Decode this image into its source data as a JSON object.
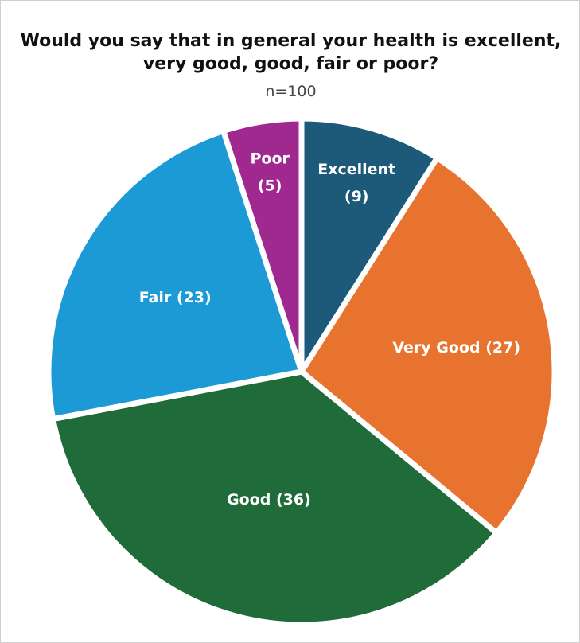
{
  "chart_data": {
    "type": "pie",
    "title": "Would you say that in general your health is excellent, very good, good, fair or poor?",
    "subtitle": "n=100",
    "slices": [
      {
        "key": "excellent",
        "label_lines": [
          "Excellent",
          "(9)"
        ],
        "value": 9,
        "color": "#1d5a7a"
      },
      {
        "key": "very-good",
        "label_lines": [
          "Very Good (27)"
        ],
        "value": 27,
        "color": "#e8732e"
      },
      {
        "key": "good",
        "label_lines": [
          "Good (36)"
        ],
        "value": 36,
        "color": "#1f6b3a"
      },
      {
        "key": "fair",
        "label_lines": [
          "Fair (23)"
        ],
        "value": 23,
        "color": "#1c9ad6"
      },
      {
        "key": "poor",
        "label_lines": [
          "Poor",
          "(5)"
        ],
        "value": 5,
        "color": "#a0298f"
      }
    ]
  }
}
